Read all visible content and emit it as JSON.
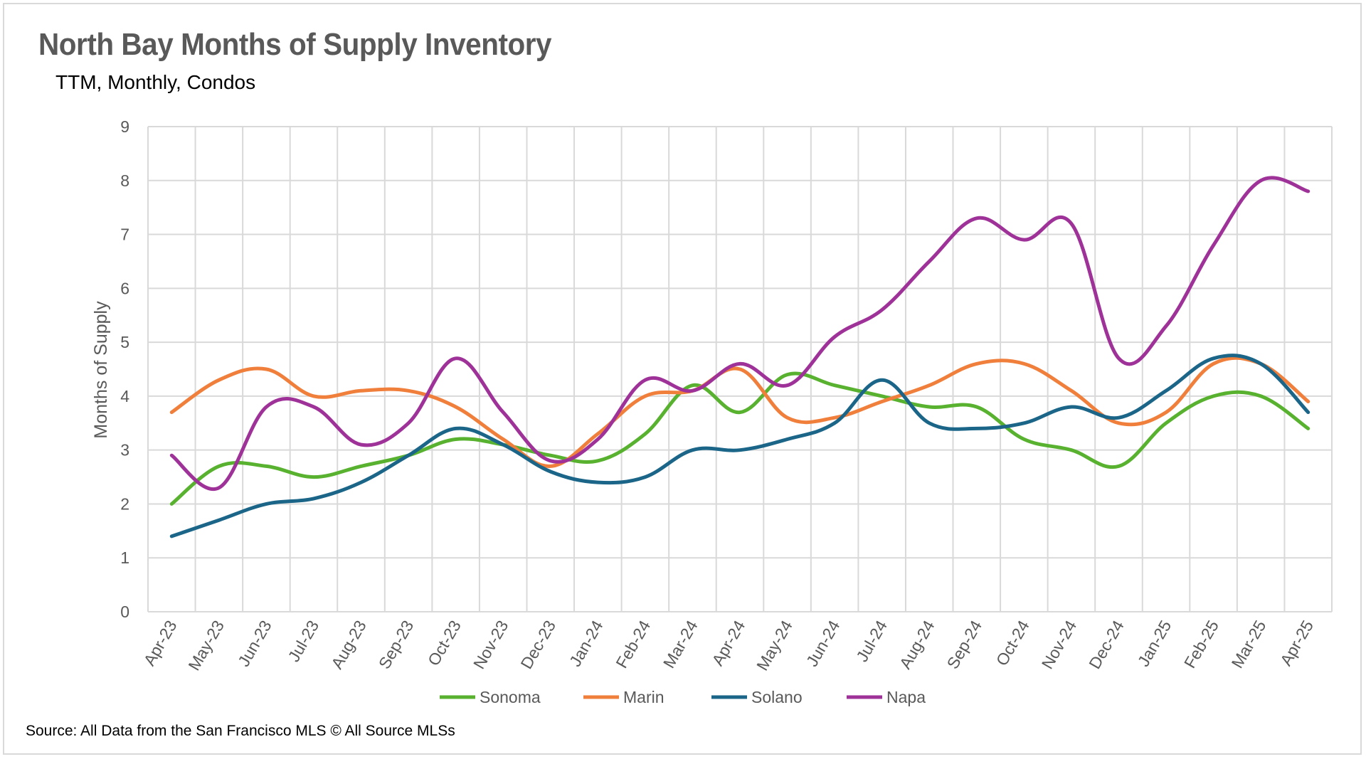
{
  "chart_data": {
    "type": "line",
    "title": "North Bay Months of Supply Inventory",
    "subtitle": "TTM, Monthly, Condos",
    "ylabel": "Months of Supply",
    "xlabel": "",
    "ylim": [
      0,
      9
    ],
    "yticks": [
      "0",
      "1",
      "2",
      "3",
      "4",
      "5",
      "6",
      "7",
      "8",
      "9"
    ],
    "grid": true,
    "smooth": true,
    "legend_position": "bottom",
    "categories": [
      "Apr-23",
      "May-23",
      "Jun-23",
      "Jul-23",
      "Aug-23",
      "Sep-23",
      "Oct-23",
      "Nov-23",
      "Dec-23",
      "Jan-24",
      "Feb-24",
      "Mar-24",
      "Apr-24",
      "May-24",
      "Jun-24",
      "Jul-24",
      "Aug-24",
      "Sep-24",
      "Oct-24",
      "Nov-24",
      "Dec-24",
      "Jan-25",
      "Feb-25",
      "Mar-25",
      "Apr-25"
    ],
    "series": [
      {
        "name": "Sonoma",
        "color": "#58b22f",
        "values": [
          2.0,
          2.7,
          2.7,
          2.5,
          2.7,
          2.9,
          3.2,
          3.1,
          2.9,
          2.8,
          3.3,
          4.2,
          3.7,
          4.4,
          4.2,
          4.0,
          3.8,
          3.8,
          3.2,
          3.0,
          2.7,
          3.5,
          4.0,
          4.0,
          3.4
        ]
      },
      {
        "name": "Marin",
        "color": "#f07f3c",
        "values": [
          3.7,
          4.3,
          4.5,
          4.0,
          4.1,
          4.1,
          3.8,
          3.2,
          2.7,
          3.3,
          4.0,
          4.1,
          4.5,
          3.6,
          3.6,
          3.9,
          4.2,
          4.6,
          4.6,
          4.1,
          3.5,
          3.7,
          4.6,
          4.6,
          3.9
        ]
      },
      {
        "name": "Solano",
        "color": "#1b6688",
        "values": [
          1.4,
          1.7,
          2.0,
          2.1,
          2.4,
          2.9,
          3.4,
          3.1,
          2.6,
          2.4,
          2.5,
          3.0,
          3.0,
          3.2,
          3.5,
          4.3,
          3.5,
          3.4,
          3.5,
          3.8,
          3.6,
          4.1,
          4.7,
          4.6,
          3.7
        ]
      },
      {
        "name": "Napa",
        "color": "#9e3298",
        "values": [
          2.9,
          2.3,
          3.8,
          3.8,
          3.1,
          3.5,
          4.7,
          3.7,
          2.8,
          3.2,
          4.3,
          4.1,
          4.6,
          4.2,
          5.1,
          5.6,
          6.5,
          7.3,
          6.9,
          7.2,
          4.7,
          5.3,
          6.8,
          8.0,
          7.8
        ]
      }
    ],
    "source": "Source: All Data from the San Francisco MLS © All Source MLSs"
  }
}
